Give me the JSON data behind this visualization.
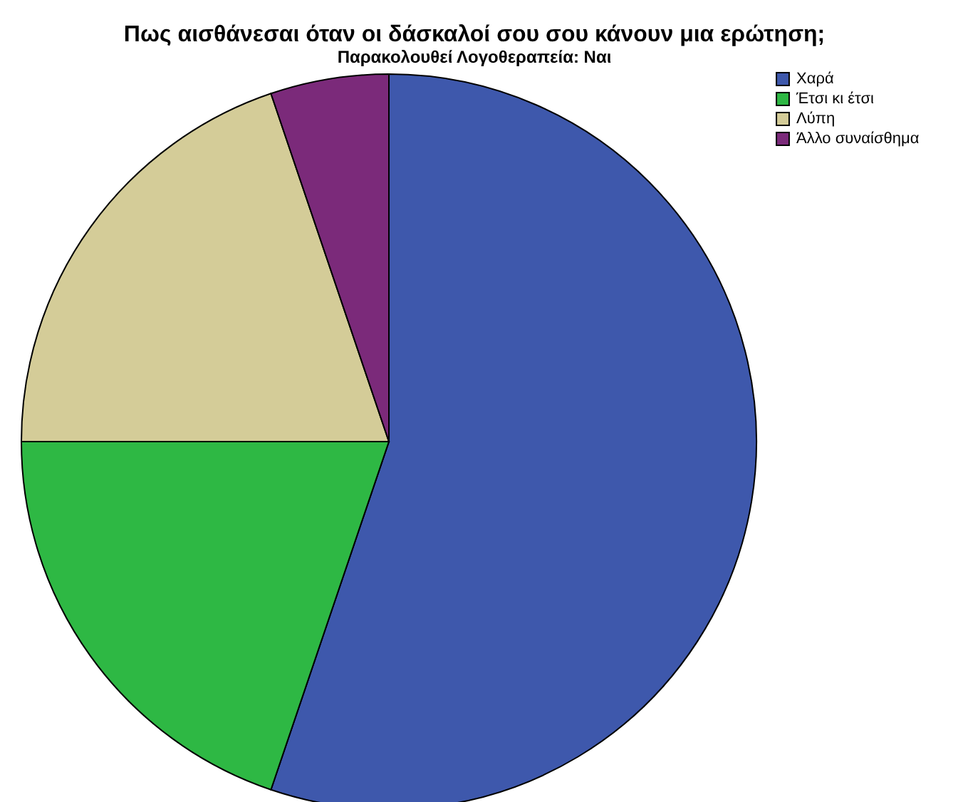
{
  "chart_data": {
    "type": "pie",
    "title": "Πως αισθάνεσαι όταν οι δάσκαλοί σου σου κάνουν μια ερώτηση;",
    "subtitle": "Παρακολουθεί Λογοθεραπεία: Ναι",
    "categories": [
      "Χαρά",
      "Έτσι κι έτσι",
      "Λύπη",
      "Άλλο συναίσθημα"
    ],
    "values": [
      55.2,
      19.8,
      19.8,
      5.2
    ],
    "colors": [
      "#3e58ac",
      "#2eb844",
      "#d4cc98",
      "#7b2a7a"
    ],
    "legend": "top right"
  }
}
